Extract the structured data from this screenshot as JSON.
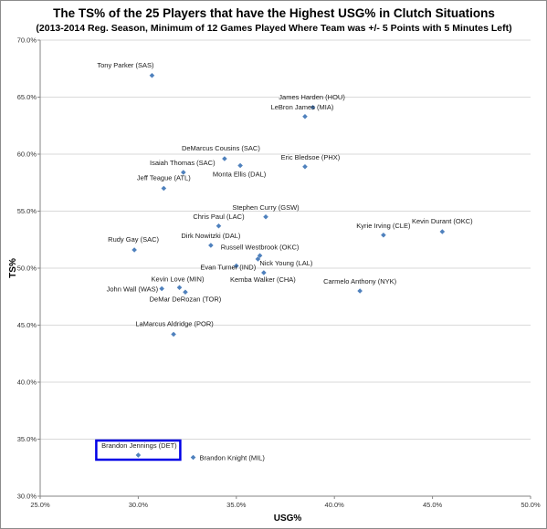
{
  "chart_data": {
    "type": "scatter",
    "title": "The TS% of the 25 Players that have the Highest USG% in Clutch Situations",
    "subtitle": "(2013-2014 Reg. Season, Minimum of 12 Games Played Where Team was +/- 5 Points with 5 Minutes Left)",
    "xlabel": "USG%",
    "ylabel": "TS%",
    "xlim": [
      25.0,
      50.0
    ],
    "ylim": [
      30.0,
      70.0
    ],
    "x_ticks": [
      "25.0%",
      "30.0%",
      "35.0%",
      "40.0%",
      "45.0%",
      "50.0%"
    ],
    "y_ticks": [
      "30.0%",
      "35.0%",
      "40.0%",
      "45.0%",
      "50.0%",
      "55.0%",
      "60.0%",
      "65.0%",
      "70.0%"
    ],
    "grid": "horizontal",
    "marker_color": "#4f81bd",
    "highlight_color": "#0000e6",
    "highlighted_point": "Brandon Jennings (DET)",
    "points": [
      {
        "label": "Tony Parker (SAS)",
        "x": 30.7,
        "y": 66.9
      },
      {
        "label": "James Harden (HOU)",
        "x": 38.9,
        "y": 64.1
      },
      {
        "label": "LeBron James (MIA)",
        "x": 38.5,
        "y": 63.3
      },
      {
        "label": "DeMarcus Cousins (SAC)",
        "x": 34.4,
        "y": 59.6
      },
      {
        "label": "Monta Ellis (DAL)",
        "x": 35.2,
        "y": 59.0
      },
      {
        "label": "Isaiah Thomas (SAC)",
        "x": 32.3,
        "y": 58.4
      },
      {
        "label": "Eric Bledsoe (PHX)",
        "x": 38.5,
        "y": 58.9
      },
      {
        "label": "Jeff Teague (ATL)",
        "x": 31.3,
        "y": 57.0
      },
      {
        "label": "Stephen Curry (GSW)",
        "x": 36.5,
        "y": 54.5
      },
      {
        "label": "Chris Paul (LAC)",
        "x": 34.1,
        "y": 53.7
      },
      {
        "label": "Kyrie Irving (CLE)",
        "x": 42.5,
        "y": 52.9
      },
      {
        "label": "Kevin Durant (OKC)",
        "x": 45.5,
        "y": 53.2
      },
      {
        "label": "Dirk Nowitzki (DAL)",
        "x": 33.7,
        "y": 52.0
      },
      {
        "label": "Rudy Gay (SAC)",
        "x": 29.8,
        "y": 51.6
      },
      {
        "label": "Russell Westbrook (OKC)",
        "x": 36.2,
        "y": 51.1
      },
      {
        "label": "Nick Young (LAL)",
        "x": 36.1,
        "y": 50.8
      },
      {
        "label": "Evan Turner (IND)",
        "x": 35.0,
        "y": 50.2
      },
      {
        "label": "Kemba Walker (CHA)",
        "x": 36.4,
        "y": 49.6
      },
      {
        "label": "Carmelo Anthony (NYK)",
        "x": 41.3,
        "y": 48.0
      },
      {
        "label": "Kevin Love (MIN)",
        "x": 32.1,
        "y": 48.3
      },
      {
        "label": "John Wall (WAS)",
        "x": 31.2,
        "y": 48.2
      },
      {
        "label": "DeMar DeRozan (TOR)",
        "x": 32.4,
        "y": 47.9
      },
      {
        "label": "LaMarcus Aldridge (POR)",
        "x": 31.8,
        "y": 44.2
      },
      {
        "label": "Brandon Jennings (DET)",
        "x": 30.0,
        "y": 33.6
      },
      {
        "label": "Brandon Knight (MIL)",
        "x": 32.8,
        "y": 33.4
      }
    ]
  }
}
